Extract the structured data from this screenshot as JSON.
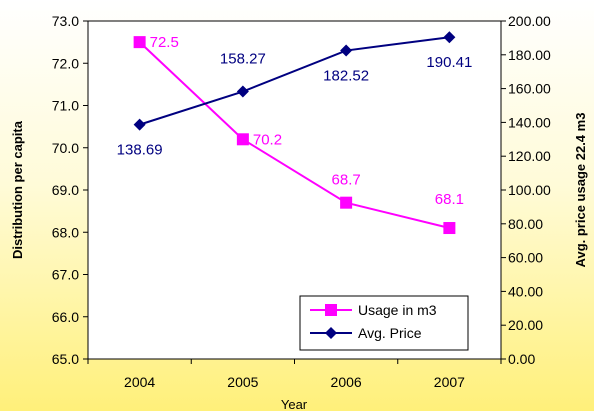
{
  "chart_data": {
    "type": "line",
    "title": "",
    "xlabel": "Year",
    "ylabel": "Distribution per capita",
    "y2label": "Avg. price usage 22.4 m3",
    "categories": [
      "2004",
      "2005",
      "2006",
      "2007"
    ],
    "ylim": [
      65.0,
      73.0
    ],
    "y2lim": [
      0.0,
      200.0
    ],
    "y_ticks": [
      "65.0",
      "66.0",
      "67.0",
      "68.0",
      "69.0",
      "70.0",
      "71.0",
      "72.0",
      "73.0"
    ],
    "y2_ticks": [
      "0.00",
      "20.00",
      "40.00",
      "60.00",
      "80.00",
      "100.00",
      "120.00",
      "140.00",
      "160.00",
      "180.00",
      "200.00"
    ],
    "series": [
      {
        "name": "Usage in m3",
        "axis": "left",
        "color": "#FF00FF",
        "marker": "square",
        "values": [
          72.5,
          70.2,
          68.7,
          68.1
        ],
        "labels": [
          "72.5",
          "70.2",
          "68.7",
          "68.1"
        ]
      },
      {
        "name": "Avg. Price",
        "axis": "right",
        "color": "#000080",
        "marker": "diamond",
        "values": [
          138.69,
          158.27,
          182.52,
          190.41
        ],
        "labels": [
          "138.69",
          "158.27",
          "182.52",
          "190.41"
        ]
      }
    ],
    "legend": "bottom-right",
    "grid": false
  }
}
